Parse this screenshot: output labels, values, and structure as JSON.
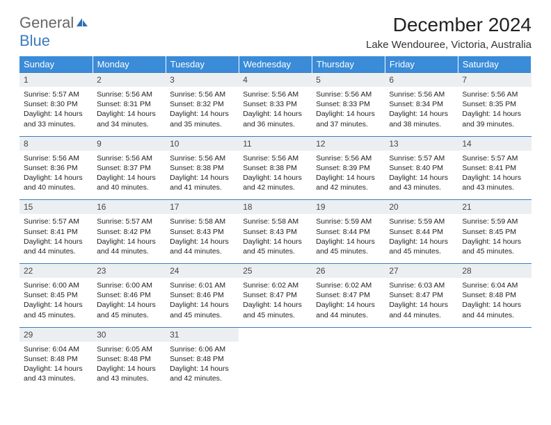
{
  "brand": {
    "part1": "General",
    "part2": "Blue"
  },
  "title": "December 2024",
  "location": "Lake Wendouree, Victoria, Australia",
  "colors": {
    "header_bg": "#3a8bd8",
    "header_text": "#ffffff",
    "daynum_bg": "#eceff1",
    "border": "#3a7bbf",
    "brand_gray": "#666666",
    "brand_blue": "#3a7bbf",
    "body_text": "#222222",
    "background": "#ffffff"
  },
  "typography": {
    "title_fontsize": 28,
    "location_fontsize": 15,
    "header_fontsize": 13,
    "daynum_fontsize": 12,
    "cell_fontsize": 10.5,
    "font_family": "Arial"
  },
  "layout": {
    "columns": 7,
    "rows": 5,
    "start_weekday": "Sunday",
    "first_day_column_index": 0
  },
  "weekdays": [
    "Sunday",
    "Monday",
    "Tuesday",
    "Wednesday",
    "Thursday",
    "Friday",
    "Saturday"
  ],
  "days": [
    {
      "n": 1,
      "sunrise": "5:57 AM",
      "sunset": "8:30 PM",
      "daylight": "14 hours and 33 minutes."
    },
    {
      "n": 2,
      "sunrise": "5:56 AM",
      "sunset": "8:31 PM",
      "daylight": "14 hours and 34 minutes."
    },
    {
      "n": 3,
      "sunrise": "5:56 AM",
      "sunset": "8:32 PM",
      "daylight": "14 hours and 35 minutes."
    },
    {
      "n": 4,
      "sunrise": "5:56 AM",
      "sunset": "8:33 PM",
      "daylight": "14 hours and 36 minutes."
    },
    {
      "n": 5,
      "sunrise": "5:56 AM",
      "sunset": "8:33 PM",
      "daylight": "14 hours and 37 minutes."
    },
    {
      "n": 6,
      "sunrise": "5:56 AM",
      "sunset": "8:34 PM",
      "daylight": "14 hours and 38 minutes."
    },
    {
      "n": 7,
      "sunrise": "5:56 AM",
      "sunset": "8:35 PM",
      "daylight": "14 hours and 39 minutes."
    },
    {
      "n": 8,
      "sunrise": "5:56 AM",
      "sunset": "8:36 PM",
      "daylight": "14 hours and 40 minutes."
    },
    {
      "n": 9,
      "sunrise": "5:56 AM",
      "sunset": "8:37 PM",
      "daylight": "14 hours and 40 minutes."
    },
    {
      "n": 10,
      "sunrise": "5:56 AM",
      "sunset": "8:38 PM",
      "daylight": "14 hours and 41 minutes."
    },
    {
      "n": 11,
      "sunrise": "5:56 AM",
      "sunset": "8:38 PM",
      "daylight": "14 hours and 42 minutes."
    },
    {
      "n": 12,
      "sunrise": "5:56 AM",
      "sunset": "8:39 PM",
      "daylight": "14 hours and 42 minutes."
    },
    {
      "n": 13,
      "sunrise": "5:57 AM",
      "sunset": "8:40 PM",
      "daylight": "14 hours and 43 minutes."
    },
    {
      "n": 14,
      "sunrise": "5:57 AM",
      "sunset": "8:41 PM",
      "daylight": "14 hours and 43 minutes."
    },
    {
      "n": 15,
      "sunrise": "5:57 AM",
      "sunset": "8:41 PM",
      "daylight": "14 hours and 44 minutes."
    },
    {
      "n": 16,
      "sunrise": "5:57 AM",
      "sunset": "8:42 PM",
      "daylight": "14 hours and 44 minutes."
    },
    {
      "n": 17,
      "sunrise": "5:58 AM",
      "sunset": "8:43 PM",
      "daylight": "14 hours and 44 minutes."
    },
    {
      "n": 18,
      "sunrise": "5:58 AM",
      "sunset": "8:43 PM",
      "daylight": "14 hours and 45 minutes."
    },
    {
      "n": 19,
      "sunrise": "5:59 AM",
      "sunset": "8:44 PM",
      "daylight": "14 hours and 45 minutes."
    },
    {
      "n": 20,
      "sunrise": "5:59 AM",
      "sunset": "8:44 PM",
      "daylight": "14 hours and 45 minutes."
    },
    {
      "n": 21,
      "sunrise": "5:59 AM",
      "sunset": "8:45 PM",
      "daylight": "14 hours and 45 minutes."
    },
    {
      "n": 22,
      "sunrise": "6:00 AM",
      "sunset": "8:45 PM",
      "daylight": "14 hours and 45 minutes."
    },
    {
      "n": 23,
      "sunrise": "6:00 AM",
      "sunset": "8:46 PM",
      "daylight": "14 hours and 45 minutes."
    },
    {
      "n": 24,
      "sunrise": "6:01 AM",
      "sunset": "8:46 PM",
      "daylight": "14 hours and 45 minutes."
    },
    {
      "n": 25,
      "sunrise": "6:02 AM",
      "sunset": "8:47 PM",
      "daylight": "14 hours and 45 minutes."
    },
    {
      "n": 26,
      "sunrise": "6:02 AM",
      "sunset": "8:47 PM",
      "daylight": "14 hours and 44 minutes."
    },
    {
      "n": 27,
      "sunrise": "6:03 AM",
      "sunset": "8:47 PM",
      "daylight": "14 hours and 44 minutes."
    },
    {
      "n": 28,
      "sunrise": "6:04 AM",
      "sunset": "8:48 PM",
      "daylight": "14 hours and 44 minutes."
    },
    {
      "n": 29,
      "sunrise": "6:04 AM",
      "sunset": "8:48 PM",
      "daylight": "14 hours and 43 minutes."
    },
    {
      "n": 30,
      "sunrise": "6:05 AM",
      "sunset": "8:48 PM",
      "daylight": "14 hours and 43 minutes."
    },
    {
      "n": 31,
      "sunrise": "6:06 AM",
      "sunset": "8:48 PM",
      "daylight": "14 hours and 42 minutes."
    }
  ],
  "labels": {
    "sunrise_prefix": "Sunrise: ",
    "sunset_prefix": "Sunset: ",
    "daylight_prefix": "Daylight: "
  }
}
